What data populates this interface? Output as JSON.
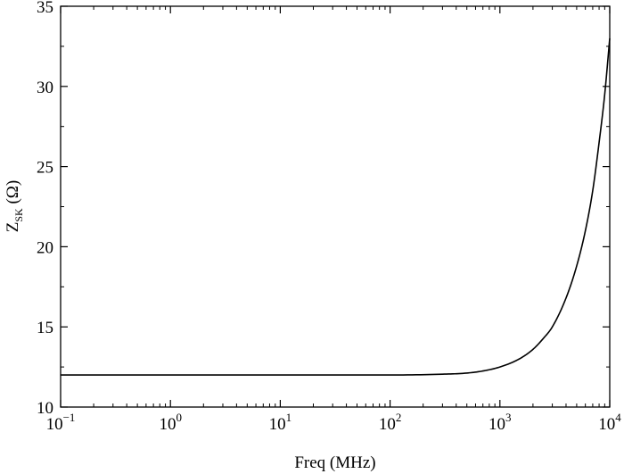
{
  "chart_data": {
    "type": "line",
    "xlabel": "Freq (MHz)",
    "ylabel": {
      "main": "Z",
      "subscript": "SK",
      "unit": " (Ω)"
    },
    "x_scale": "log",
    "xlim": [
      0.1,
      10000
    ],
    "ylim": [
      10,
      35
    ],
    "x_ticks": [
      {
        "value": 0.1,
        "base": "10",
        "exp": "−1"
      },
      {
        "value": 1,
        "base": "10",
        "exp": "0"
      },
      {
        "value": 10,
        "base": "10",
        "exp": "1"
      },
      {
        "value": 100,
        "base": "10",
        "exp": "2"
      },
      {
        "value": 1000,
        "base": "10",
        "exp": "3"
      },
      {
        "value": 10000,
        "base": "10",
        "exp": "4"
      }
    ],
    "y_ticks": [
      10,
      15,
      20,
      25,
      30,
      35
    ],
    "grid": false,
    "series": [
      {
        "color": "#000000",
        "x": [
          0.1,
          1,
          10,
          100,
          300,
          500,
          700,
          1000,
          1500,
          2000,
          2500,
          3000,
          4000,
          5000,
          6000,
          7000,
          8000,
          9000,
          10000
        ],
        "y": [
          12.0,
          12.0,
          12.0,
          12.0,
          12.05,
          12.12,
          12.25,
          12.5,
          13.0,
          13.6,
          14.3,
          15.0,
          16.8,
          18.8,
          21.0,
          23.5,
          26.5,
          29.5,
          33.0
        ]
      }
    ]
  }
}
